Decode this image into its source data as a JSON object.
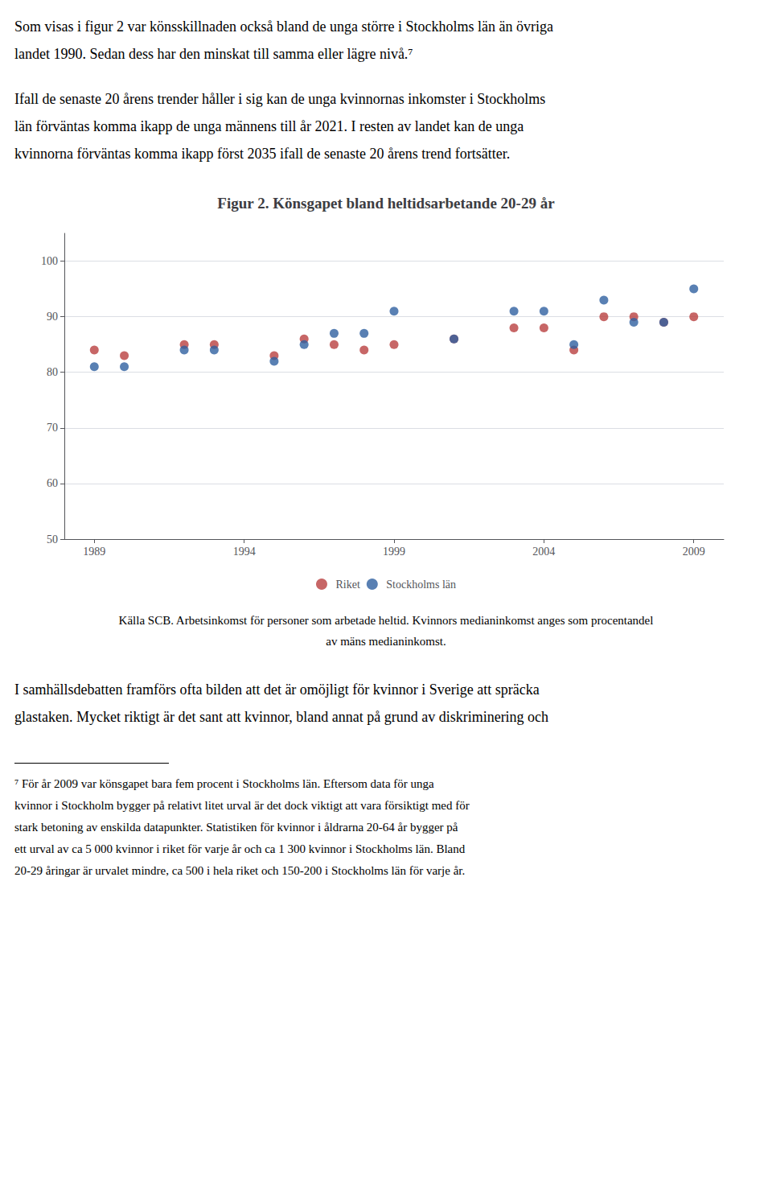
{
  "chart_data": {
    "type": "scatter",
    "title": "Figur 2. Könsgapet bland heltidsarbetande 20-29 år",
    "series": [
      {
        "name": "Riket",
        "color": "#b94040",
        "x": [
          1989,
          1990,
          1992,
          1993,
          1995,
          1996,
          1997,
          1998,
          1999,
          2001,
          2003,
          2004,
          2005,
          2006,
          2007,
          2008,
          2009
        ],
        "values": [
          84,
          83,
          85,
          85,
          83,
          86,
          85,
          84,
          85,
          86,
          88,
          88,
          84,
          90,
          90,
          89,
          90
        ]
      },
      {
        "name": "Stockholms län",
        "color": "#3060a0",
        "x": [
          1989,
          1990,
          1992,
          1993,
          1995,
          1996,
          1997,
          1998,
          1999,
          2001,
          2003,
          2004,
          2005,
          2006,
          2007,
          2008,
          2009
        ],
        "values": [
          81,
          81,
          84,
          84,
          82,
          85,
          87,
          87,
          91,
          86,
          91,
          91,
          85,
          93,
          89,
          89,
          95
        ]
      }
    ],
    "xlim": [
      1988,
      2010
    ],
    "xticks": [
      1989,
      1994,
      1999,
      2004,
      2009
    ],
    "ylim": [
      50,
      105
    ],
    "yticks": [
      50,
      60,
      70,
      80,
      90,
      100
    ],
    "grid": true,
    "legend": "bottom",
    "annotations": [
      [
        "Som visas i figur 2 var könsskillnaden också bland de unga större i Stockholms län än övriga",
        "landet 1990. Sedan dess har den minskat till samma eller lägre nivå.⁷"
      ],
      [
        "Ifall de senaste 20 årens trender håller i sig kan de unga kvinnornas inkomster i Stockholms",
        "län förväntas komma ikapp de unga männens till år 2021. I resten av landet kan de unga",
        "kvinnorna förväntas komma ikapp först 2035 ifall de senaste 20 årens trend fortsätter."
      ],
      [
        "Källa SCB. Arbetsinkomst för personer som arbetade heltid. Kvinnors medianinkomst anges som procentandel",
        "av mäns medianinkomst."
      ],
      [
        "I samhällsdebatten framförs ofta bilden att det är omöjligt för kvinnor i Sverige att spräcka",
        "glastaken. Mycket riktigt är det sant att kvinnor, bland annat på grund av diskriminering och"
      ],
      [
        "⁷ För år 2009 var könsgapet bara fem procent i Stockholms län. Eftersom data för unga",
        "kvinnor i Stockholm bygger på relativt litet urval är det dock viktigt att vara försiktigt med för",
        "stark betoning av enskilda datapunkter. Statistiken för kvinnor i åldrarna 20-64 år bygger på",
        "ett urval av ca 5 000 kvinnor i riket för varje år och ca 1 300 kvinnor i Stockholms län. Bland",
        "20-29 åringar är urvalet mindre, ca 500 i hela riket och 150-200 i Stockholms län för varje år."
      ]
    ]
  }
}
